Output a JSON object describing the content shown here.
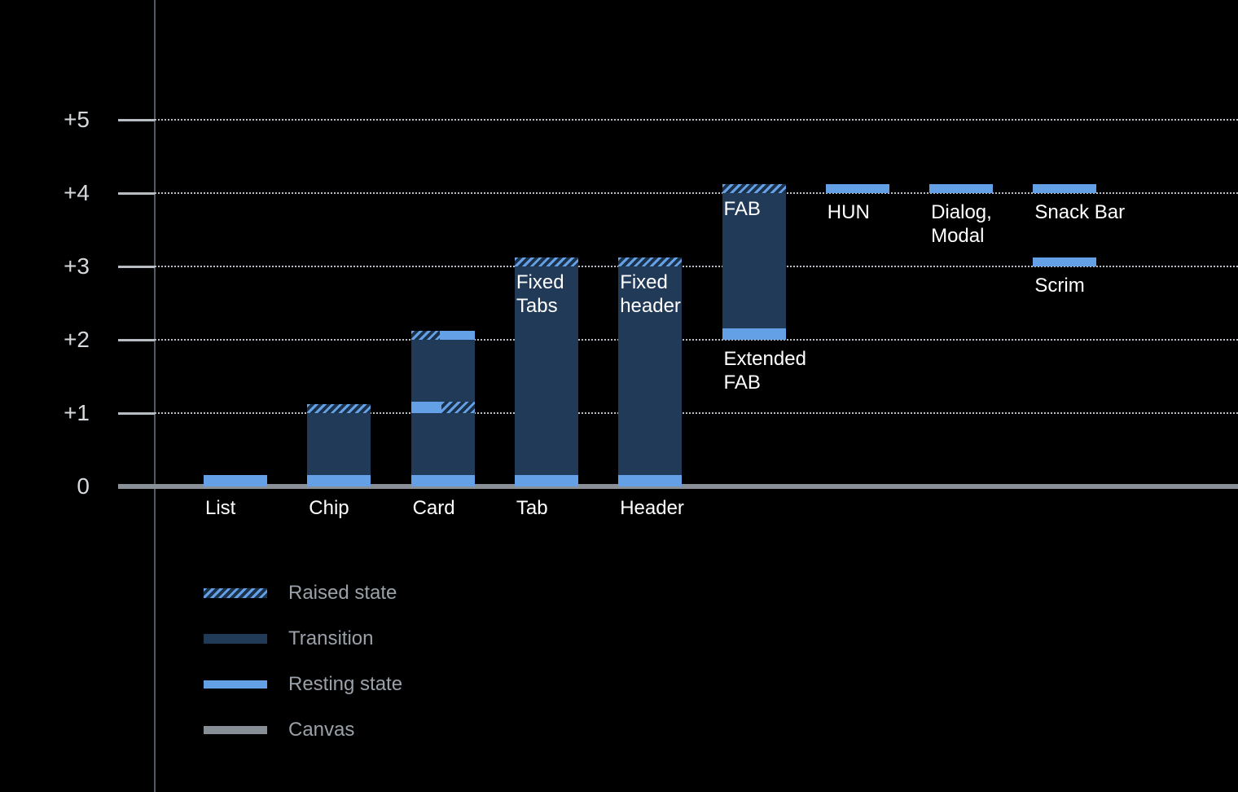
{
  "page": {
    "background": "#000000"
  },
  "chart_data": {
    "type": "bar",
    "title": "",
    "xlabel": "",
    "ylabel": "",
    "ylim": [
      0,
      5.5
    ],
    "grid": true,
    "legend_position": "bottom-left",
    "y_axis": {
      "ticks": [
        {
          "label": "+5",
          "value": 5
        },
        {
          "label": "+4",
          "value": 4
        },
        {
          "label": "+3",
          "value": 3
        },
        {
          "label": "+2",
          "value": 2
        },
        {
          "label": "+1",
          "value": 1
        },
        {
          "label": "0",
          "value": 0
        }
      ]
    },
    "items": [
      {
        "name": "list",
        "col": 0,
        "label_lines": [
          "List"
        ],
        "label_pos": "baseline",
        "segments": [
          {
            "kind": "resting",
            "from": 0,
            "to": 0.16
          }
        ]
      },
      {
        "name": "chip",
        "col": 1,
        "label_lines": [
          "Chip"
        ],
        "label_pos": "baseline",
        "segments": [
          {
            "kind": "resting",
            "from": 0,
            "to": 0.16
          },
          {
            "kind": "transition",
            "from": 0.16,
            "to": 1.0
          },
          {
            "kind": "raised",
            "from": 1.0,
            "to": 1.12
          }
        ]
      },
      {
        "name": "card",
        "col": 2,
        "label_lines": [
          "Card"
        ],
        "label_pos": "baseline",
        "segments": [
          {
            "kind": "resting",
            "from": 0,
            "to": 0.16
          },
          {
            "kind": "transition",
            "from": 0.16,
            "to": 1.0
          },
          {
            "kind": "resting",
            "from": 1.0,
            "to": 1.16,
            "hatch": "right"
          },
          {
            "kind": "transition",
            "from": 1.16,
            "to": 2.0
          },
          {
            "kind": "resting",
            "from": 2.0,
            "to": 2.12,
            "hatch": "left"
          }
        ]
      },
      {
        "name": "tab",
        "col": 3,
        "label_lines": [
          "Tab"
        ],
        "label_pos": "baseline",
        "inner_label_lines": [
          "Fixed",
          "Tabs"
        ],
        "segments": [
          {
            "kind": "resting",
            "from": 0,
            "to": 0.16
          },
          {
            "kind": "transition",
            "from": 0.16,
            "to": 3.0
          },
          {
            "kind": "raised",
            "from": 3.0,
            "to": 3.12
          }
        ]
      },
      {
        "name": "header",
        "col": 4,
        "label_lines": [
          "Header"
        ],
        "label_pos": "baseline",
        "inner_label_lines": [
          "Fixed",
          "header"
        ],
        "segments": [
          {
            "kind": "resting",
            "from": 0,
            "to": 0.16
          },
          {
            "kind": "transition",
            "from": 0.16,
            "to": 3.0
          },
          {
            "kind": "raised",
            "from": 3.0,
            "to": 3.12
          }
        ]
      },
      {
        "name": "extended-fab",
        "col": 5,
        "label_lines": [
          "Extended",
          "FAB"
        ],
        "label_pos": "below-bar",
        "inner_label_lines": [
          "FAB"
        ],
        "segments": [
          {
            "kind": "resting",
            "from": 2.0,
            "to": 2.16
          },
          {
            "kind": "transition",
            "from": 2.16,
            "to": 4.0
          },
          {
            "kind": "raised",
            "from": 4.0,
            "to": 4.12
          }
        ]
      },
      {
        "name": "hun",
        "col": 6,
        "label_lines": [
          "HUN"
        ],
        "label_pos": "below-bar",
        "segments": [
          {
            "kind": "resting",
            "from": 4.0,
            "to": 4.12
          }
        ]
      },
      {
        "name": "dialog-modal",
        "col": 7,
        "label_lines": [
          "Dialog,",
          "Modal"
        ],
        "label_pos": "below-bar",
        "segments": [
          {
            "kind": "resting",
            "from": 4.0,
            "to": 4.12
          }
        ]
      },
      {
        "name": "snack-bar",
        "col": 8,
        "label_lines": [
          "Snack Bar"
        ],
        "label_pos": "below-bar",
        "segments": [
          {
            "kind": "resting",
            "from": 4.0,
            "to": 4.12
          }
        ]
      },
      {
        "name": "scrim",
        "col": 8,
        "label_lines": [
          "Scrim"
        ],
        "label_pos": "below-bar",
        "segments": [
          {
            "kind": "resting",
            "from": 3.0,
            "to": 3.12
          }
        ]
      }
    ],
    "legend": [
      {
        "kind": "raised",
        "label": "Raised state"
      },
      {
        "kind": "transition",
        "label": "Transition"
      },
      {
        "kind": "resting",
        "label": "Resting state"
      },
      {
        "kind": "canvas",
        "label": "Canvas"
      }
    ],
    "colors": {
      "resting": "#64a0e6",
      "transition": "#213a58",
      "raised_stripe": "#64a0e6",
      "canvas": "#8a9097",
      "grid": "#b8bdc3",
      "axis": "#545a61",
      "bar_label": "#ffffff",
      "tick_label": "#d6d9dc",
      "legend_text": "#9aa1a8"
    }
  }
}
